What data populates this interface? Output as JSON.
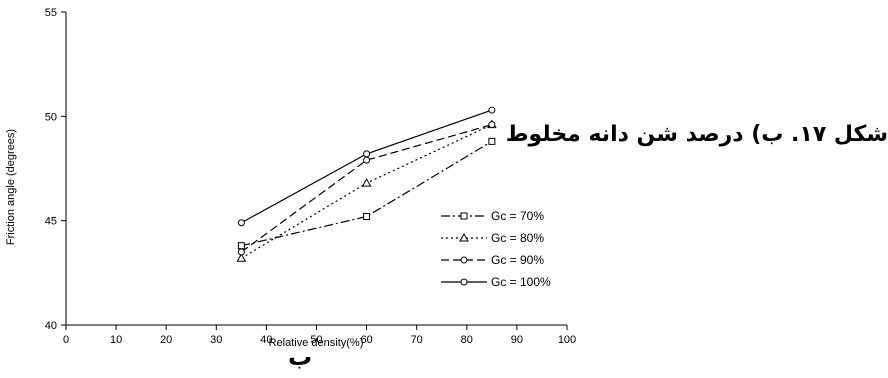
{
  "caption": "شکل ۱۷. ب) درصد شن دانه مخلوط",
  "figure_letter": "ب",
  "chart_data": {
    "type": "line",
    "title": "",
    "xlabel": "Relative density(%)",
    "ylabel": "Friction angle (degrees)",
    "xlim": [
      0,
      100
    ],
    "ylim": [
      40,
      55
    ],
    "xticks": [
      0,
      10,
      20,
      30,
      40,
      50,
      60,
      70,
      80,
      90,
      100
    ],
    "yticks": [
      40,
      45,
      50,
      55
    ],
    "grid": false,
    "legend_position": "lower-right",
    "x": [
      35,
      60,
      85
    ],
    "series": [
      {
        "name": "Gc = 70%",
        "values": [
          43.8,
          45.2,
          48.8
        ],
        "marker": "square",
        "dash": "dash-dot"
      },
      {
        "name": "Gc = 80%",
        "values": [
          43.2,
          46.8,
          49.6
        ],
        "marker": "triangle",
        "dash": "dotted"
      },
      {
        "name": "Gc = 90%",
        "values": [
          43.5,
          47.9,
          49.6
        ],
        "marker": "circle",
        "dash": "dashed"
      },
      {
        "name": "Gc = 100%",
        "values": [
          44.9,
          48.2,
          50.3
        ],
        "marker": "circle",
        "dash": "solid"
      }
    ]
  }
}
